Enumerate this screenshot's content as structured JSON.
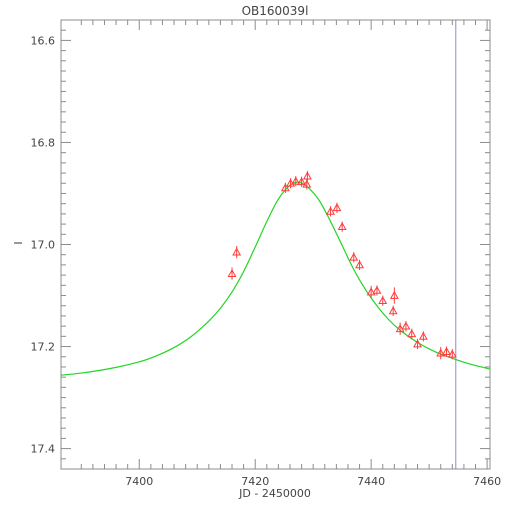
{
  "chart_data": {
    "type": "scatter",
    "title": "OB160039l",
    "xlabel": "JD - 2450000",
    "ylabel": "I",
    "xlim": [
      7386.5,
      7460.5
    ],
    "ylim": [
      17.44,
      16.56
    ],
    "y_inverted": true,
    "grid": false,
    "x_ticks": [
      7400,
      7420,
      7440,
      7460
    ],
    "x_tick_labels": [
      "7400",
      "7420",
      "7440",
      "7460"
    ],
    "y_ticks": [
      16.6,
      16.8,
      17.0,
      17.2,
      17.4
    ],
    "y_tick_labels": [
      "16.6",
      "16.8",
      "17.0",
      "17.2",
      "17.4"
    ],
    "vertical_line": {
      "x": 7454.6,
      "color": "#8a8ad6"
    },
    "series": [
      {
        "kind": "observations",
        "marker": "triangle",
        "color": "#ff3b3b",
        "points": [
          {
            "x": 7416.0,
            "y": 17.057,
            "err": 0.012
          },
          {
            "x": 7416.8,
            "y": 17.015,
            "err": 0.012
          },
          {
            "x": 7425.2,
            "y": 16.889,
            "err": 0.01
          },
          {
            "x": 7426.1,
            "y": 16.88,
            "err": 0.01
          },
          {
            "x": 7427.0,
            "y": 16.876,
            "err": 0.01
          },
          {
            "x": 7428.0,
            "y": 16.877,
            "err": 0.01
          },
          {
            "x": 7428.9,
            "y": 16.882,
            "err": 0.01
          },
          {
            "x": 7429.0,
            "y": 16.866,
            "err": 0.01
          },
          {
            "x": 7433.0,
            "y": 16.935,
            "err": 0.01
          },
          {
            "x": 7434.1,
            "y": 16.928,
            "err": 0.01
          },
          {
            "x": 7435.0,
            "y": 16.965,
            "err": 0.01
          },
          {
            "x": 7437.0,
            "y": 17.025,
            "err": 0.01
          },
          {
            "x": 7438.0,
            "y": 17.04,
            "err": 0.01
          },
          {
            "x": 7440.0,
            "y": 17.093,
            "err": 0.012
          },
          {
            "x": 7441.0,
            "y": 17.09,
            "err": 0.01
          },
          {
            "x": 7442.0,
            "y": 17.11,
            "err": 0.01
          },
          {
            "x": 7443.8,
            "y": 17.13,
            "err": 0.01
          },
          {
            "x": 7444.0,
            "y": 17.1,
            "err": 0.016
          },
          {
            "x": 7445.0,
            "y": 17.165,
            "err": 0.012
          },
          {
            "x": 7446.0,
            "y": 17.16,
            "err": 0.01
          },
          {
            "x": 7447.0,
            "y": 17.175,
            "err": 0.01
          },
          {
            "x": 7448.0,
            "y": 17.195,
            "err": 0.01
          },
          {
            "x": 7449.0,
            "y": 17.18,
            "err": 0.01
          },
          {
            "x": 7452.0,
            "y": 17.213,
            "err": 0.012
          },
          {
            "x": 7453.0,
            "y": 17.21,
            "err": 0.01
          },
          {
            "x": 7454.0,
            "y": 17.215,
            "err": 0.01
          }
        ]
      },
      {
        "kind": "model-curve",
        "color": "#22d622",
        "x": [
          7386.5,
          7390,
          7395,
          7400,
          7403,
          7406,
          7409,
          7412,
          7414,
          7416,
          7418,
          7420,
          7422,
          7424,
          7426,
          7427.5,
          7429,
          7431,
          7433,
          7435,
          7437,
          7439,
          7441,
          7443,
          7445,
          7448,
          7451,
          7454,
          7457,
          7460.5
        ],
        "y": [
          17.256,
          17.252,
          17.243,
          17.23,
          17.218,
          17.202,
          17.18,
          17.15,
          17.125,
          17.093,
          17.053,
          17.005,
          16.955,
          16.911,
          16.884,
          16.878,
          16.887,
          16.913,
          16.955,
          17.002,
          17.049,
          17.088,
          17.12,
          17.147,
          17.168,
          17.192,
          17.21,
          17.223,
          17.234,
          17.244
        ]
      }
    ]
  }
}
